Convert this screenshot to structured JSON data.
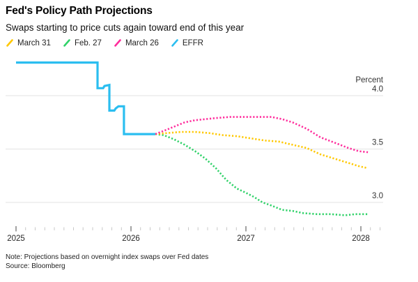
{
  "header": {
    "title": "Fed's Policy Path Projections",
    "subtitle": "Swaps starting to price cuts again toward end of this year"
  },
  "legend": [
    {
      "label": "March 31",
      "color": "#FFC800"
    },
    {
      "label": "Feb. 27",
      "color": "#30D269"
    },
    {
      "label": "March 26",
      "color": "#FF2D9C"
    },
    {
      "label": "EFFR",
      "color": "#2BBEF0"
    }
  ],
  "footer": {
    "note": "Note: Projections based on overnight index swaps over Fed dates",
    "source": "Source: Bloomberg"
  },
  "colors": {
    "gridline": "#e3e3e3",
    "major_tick": "#6f6f6f",
    "minor_tick": "#c8c8c8",
    "axis_text": "#333333"
  },
  "chart_data": {
    "type": "line",
    "title": "Fed's Policy Path Projections",
    "xlabel": "",
    "ylabel": "Percent",
    "xlim": [
      2024.91,
      2028.21
    ],
    "ylim": [
      2.75,
      4.4
    ],
    "grid": "horizontal-only",
    "legend_position": "top",
    "x_axis": {
      "ticks": [
        2025,
        2026,
        2027,
        2028
      ],
      "labels": [
        "2025",
        "2026",
        "2027",
        "2028"
      ],
      "minor_ticks_monthly": true,
      "minor_tick_end": 2028.18
    },
    "y_axis": {
      "gridlines": [
        4.0,
        3.5,
        3.0
      ],
      "labels": [
        "4.0",
        "3.5",
        "3.0"
      ]
    },
    "series": [
      {
        "name": "Feb. 27",
        "color": "#30D269",
        "style": "dotted",
        "points": [
          [
            2026.212,
            3.64
          ],
          [
            2026.285,
            3.63
          ],
          [
            2026.376,
            3.59
          ],
          [
            2026.467,
            3.54
          ],
          [
            2026.558,
            3.48
          ],
          [
            2026.648,
            3.41
          ],
          [
            2026.739,
            3.32
          ],
          [
            2026.83,
            3.21
          ],
          [
            2026.921,
            3.13
          ],
          [
            2027.0,
            3.09
          ],
          [
            2027.073,
            3.05
          ],
          [
            2027.145,
            3.0
          ],
          [
            2027.224,
            2.97
          ],
          [
            2027.315,
            2.93
          ],
          [
            2027.406,
            2.92
          ],
          [
            2027.497,
            2.9
          ],
          [
            2027.618,
            2.89
          ],
          [
            2027.739,
            2.89
          ],
          [
            2027.861,
            2.88
          ],
          [
            2027.952,
            2.89
          ],
          [
            2028.061,
            2.89
          ]
        ]
      },
      {
        "name": "March 31",
        "color": "#FFC800",
        "style": "dotted",
        "points": [
          [
            2026.212,
            3.64
          ],
          [
            2026.315,
            3.65
          ],
          [
            2026.436,
            3.66
          ],
          [
            2026.558,
            3.66
          ],
          [
            2026.679,
            3.65
          ],
          [
            2026.8,
            3.63
          ],
          [
            2026.921,
            3.62
          ],
          [
            2027.042,
            3.6
          ],
          [
            2027.164,
            3.58
          ],
          [
            2027.285,
            3.57
          ],
          [
            2027.406,
            3.54
          ],
          [
            2027.527,
            3.51
          ],
          [
            2027.648,
            3.45
          ],
          [
            2027.77,
            3.41
          ],
          [
            2027.891,
            3.37
          ],
          [
            2027.982,
            3.34
          ],
          [
            2028.061,
            3.32
          ]
        ]
      },
      {
        "name": "March 26",
        "color": "#FF2D9C",
        "style": "dotted",
        "points": [
          [
            2026.212,
            3.64
          ],
          [
            2026.285,
            3.67
          ],
          [
            2026.376,
            3.71
          ],
          [
            2026.467,
            3.75
          ],
          [
            2026.558,
            3.77
          ],
          [
            2026.648,
            3.78
          ],
          [
            2026.739,
            3.79
          ],
          [
            2026.861,
            3.8
          ],
          [
            2027.042,
            3.8
          ],
          [
            2027.224,
            3.8
          ],
          [
            2027.315,
            3.78
          ],
          [
            2027.406,
            3.75
          ],
          [
            2027.527,
            3.69
          ],
          [
            2027.648,
            3.61
          ],
          [
            2027.77,
            3.56
          ],
          [
            2027.891,
            3.51
          ],
          [
            2027.982,
            3.48
          ],
          [
            2028.061,
            3.47
          ]
        ]
      },
      {
        "name": "EFFR",
        "color": "#2BBEF0",
        "style": "solid",
        "step": true,
        "points": [
          [
            2025.0,
            4.31
          ],
          [
            2025.709,
            4.31
          ],
          [
            2025.709,
            4.07
          ],
          [
            2025.758,
            4.07
          ],
          [
            2025.77,
            4.09
          ],
          [
            2025.812,
            4.1
          ],
          [
            2025.812,
            3.86
          ],
          [
            2025.855,
            3.86
          ],
          [
            2025.867,
            3.88
          ],
          [
            2025.891,
            3.9
          ],
          [
            2025.939,
            3.9
          ],
          [
            2025.939,
            3.64
          ],
          [
            2026.212,
            3.64
          ]
        ]
      }
    ]
  }
}
